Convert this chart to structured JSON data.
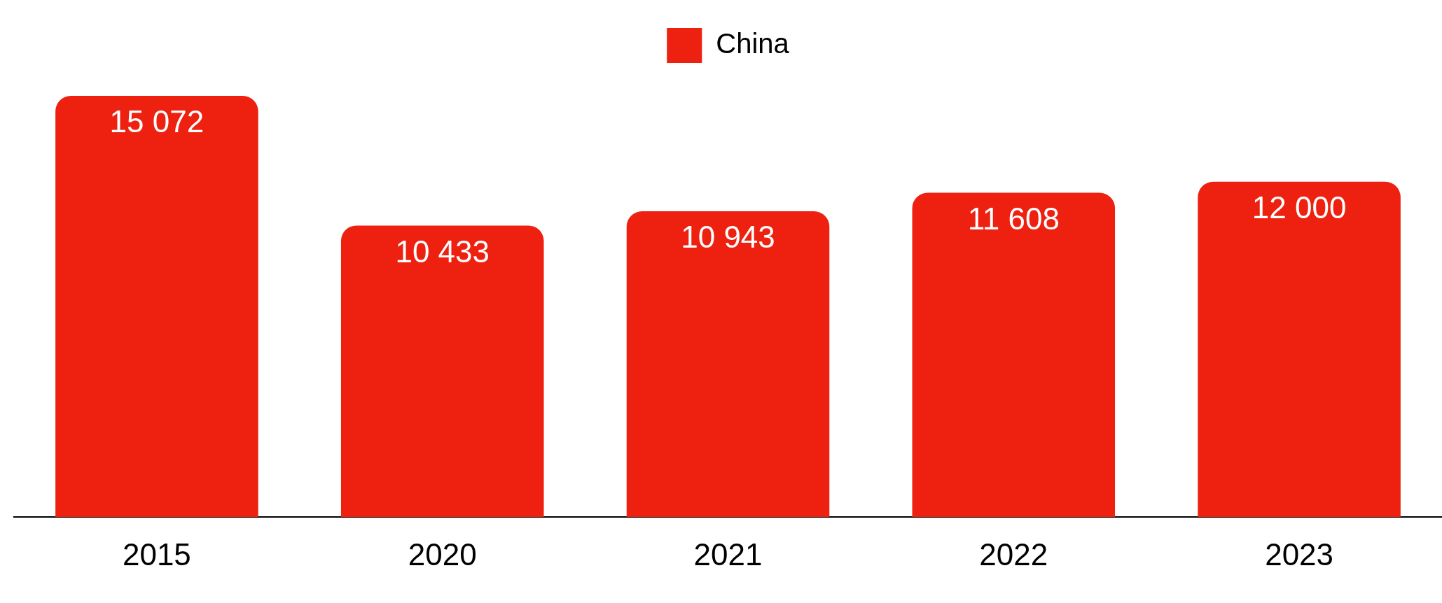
{
  "chart_data": {
    "type": "bar",
    "categories": [
      "2015",
      "2020",
      "2021",
      "2022",
      "2023"
    ],
    "series": [
      {
        "name": "China",
        "color": "#ee2010",
        "values": [
          15072,
          10433,
          10943,
          11608,
          12000
        ],
        "value_labels": [
          "15 072",
          "10 433",
          "10 943",
          "11 608",
          "12 000"
        ]
      }
    ],
    "legend": "top",
    "grid": false
  }
}
